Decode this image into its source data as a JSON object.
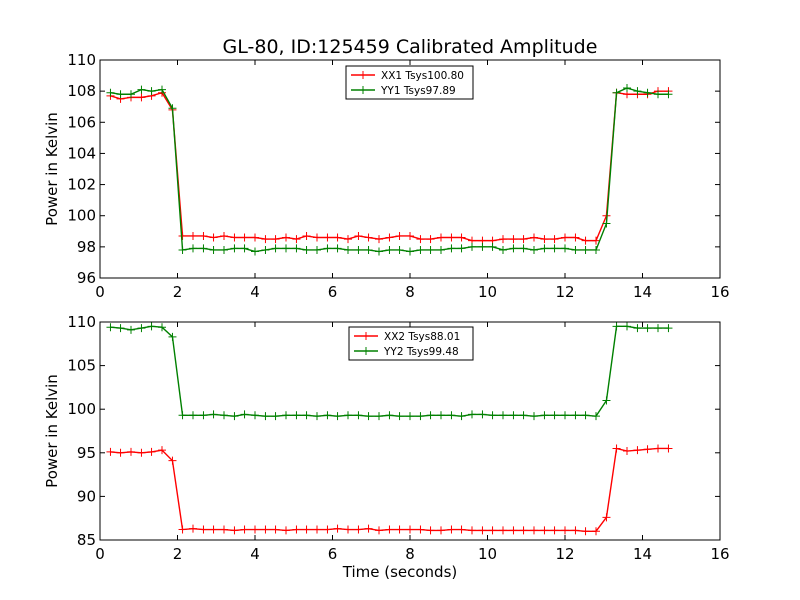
{
  "figure": {
    "title": "GL-80, ID:125459 Calibrated Amplitude"
  },
  "chart_data": [
    {
      "type": "line",
      "title": "GL-80, ID:125459 Calibrated Amplitude",
      "xlabel": "",
      "ylabel": "Power in Kelvin",
      "xlim": [
        0,
        16
      ],
      "ylim": [
        96,
        110
      ],
      "xticks": [
        0,
        2,
        4,
        6,
        8,
        10,
        12,
        14,
        16
      ],
      "yticks": [
        96,
        98,
        100,
        102,
        104,
        106,
        108,
        110
      ],
      "grid": false,
      "legend": "top-center",
      "x": [
        0.27,
        0.53,
        0.8,
        1.07,
        1.33,
        1.6,
        1.87,
        2.13,
        2.4,
        2.67,
        2.93,
        3.2,
        3.47,
        3.73,
        4.0,
        4.27,
        4.53,
        4.8,
        5.07,
        5.33,
        5.6,
        5.87,
        6.13,
        6.4,
        6.67,
        6.93,
        7.2,
        7.47,
        7.73,
        8.0,
        8.27,
        8.53,
        8.8,
        9.07,
        9.33,
        9.6,
        9.87,
        10.13,
        10.4,
        10.67,
        10.93,
        11.2,
        11.47,
        11.73,
        12.0,
        12.27,
        12.53,
        12.8,
        13.07,
        13.33,
        13.6,
        13.87,
        14.13,
        14.4,
        14.67
      ],
      "series": [
        {
          "name": "XX1 Tsys100.80",
          "color": "#ff0000",
          "values": [
            107.7,
            107.5,
            107.6,
            107.6,
            107.7,
            107.9,
            106.8,
            98.7,
            98.7,
            98.7,
            98.6,
            98.7,
            98.6,
            98.6,
            98.6,
            98.5,
            98.5,
            98.6,
            98.5,
            98.7,
            98.6,
            98.6,
            98.6,
            98.5,
            98.7,
            98.6,
            98.5,
            98.6,
            98.7,
            98.7,
            98.5,
            98.5,
            98.6,
            98.6,
            98.6,
            98.4,
            98.4,
            98.4,
            98.5,
            98.5,
            98.5,
            98.6,
            98.5,
            98.5,
            98.6,
            98.6,
            98.4,
            98.4,
            100.0,
            107.9,
            107.8,
            107.8,
            107.8,
            108.0,
            108.0
          ]
        },
        {
          "name": "YY1 Tsys97.89",
          "color": "#008000",
          "values": [
            107.9,
            107.8,
            107.8,
            108.1,
            108.0,
            108.1,
            106.9,
            97.8,
            97.9,
            97.9,
            97.8,
            97.8,
            97.9,
            97.9,
            97.7,
            97.8,
            97.9,
            97.9,
            97.9,
            97.8,
            97.8,
            97.9,
            97.9,
            97.8,
            97.8,
            97.8,
            97.7,
            97.8,
            97.8,
            97.7,
            97.8,
            97.8,
            97.8,
            97.9,
            97.9,
            98.0,
            98.0,
            98.0,
            97.8,
            97.9,
            97.9,
            97.8,
            97.9,
            97.9,
            97.9,
            97.8,
            97.8,
            97.8,
            99.5,
            107.9,
            108.2,
            108.0,
            107.9,
            107.8,
            107.8
          ]
        }
      ]
    },
    {
      "type": "line",
      "title": "",
      "xlabel": "Time (seconds)",
      "ylabel": "Power in Kelvin",
      "xlim": [
        0,
        16
      ],
      "ylim": [
        85,
        110
      ],
      "xticks": [
        0,
        2,
        4,
        6,
        8,
        10,
        12,
        14,
        16
      ],
      "yticks": [
        85,
        90,
        95,
        100,
        105,
        110
      ],
      "grid": false,
      "legend": "top-center",
      "x": [
        0.27,
        0.53,
        0.8,
        1.07,
        1.33,
        1.6,
        1.87,
        2.13,
        2.4,
        2.67,
        2.93,
        3.2,
        3.47,
        3.73,
        4.0,
        4.27,
        4.53,
        4.8,
        5.07,
        5.33,
        5.6,
        5.87,
        6.13,
        6.4,
        6.67,
        6.93,
        7.2,
        7.47,
        7.73,
        8.0,
        8.27,
        8.53,
        8.8,
        9.07,
        9.33,
        9.6,
        9.87,
        10.13,
        10.4,
        10.67,
        10.93,
        11.2,
        11.47,
        11.73,
        12.0,
        12.27,
        12.53,
        12.8,
        13.07,
        13.33,
        13.6,
        13.87,
        14.13,
        14.4,
        14.67
      ],
      "series": [
        {
          "name": "XX2 Tsys88.01",
          "color": "#ff0000",
          "values": [
            95.1,
            95.0,
            95.1,
            95.0,
            95.1,
            95.3,
            94.1,
            86.2,
            86.3,
            86.2,
            86.2,
            86.2,
            86.1,
            86.2,
            86.2,
            86.2,
            86.2,
            86.1,
            86.2,
            86.2,
            86.2,
            86.2,
            86.3,
            86.2,
            86.2,
            86.3,
            86.1,
            86.2,
            86.2,
            86.2,
            86.2,
            86.1,
            86.1,
            86.2,
            86.2,
            86.1,
            86.1,
            86.1,
            86.1,
            86.1,
            86.1,
            86.1,
            86.1,
            86.1,
            86.1,
            86.1,
            86.0,
            86.0,
            87.6,
            95.5,
            95.2,
            95.3,
            95.4,
            95.5,
            95.5
          ]
        },
        {
          "name": "YY2 Tsys99.48",
          "color": "#008000",
          "values": [
            109.4,
            109.3,
            109.1,
            109.3,
            109.5,
            109.4,
            108.3,
            99.3,
            99.3,
            99.3,
            99.4,
            99.3,
            99.2,
            99.4,
            99.3,
            99.2,
            99.2,
            99.3,
            99.3,
            99.3,
            99.2,
            99.3,
            99.2,
            99.3,
            99.3,
            99.2,
            99.2,
            99.3,
            99.2,
            99.2,
            99.2,
            99.3,
            99.3,
            99.3,
            99.2,
            99.4,
            99.4,
            99.3,
            99.3,
            99.3,
            99.3,
            99.2,
            99.3,
            99.3,
            99.3,
            99.3,
            99.3,
            99.2,
            101.0,
            109.5,
            109.5,
            109.3,
            109.3,
            109.3,
            109.3
          ]
        }
      ]
    }
  ]
}
